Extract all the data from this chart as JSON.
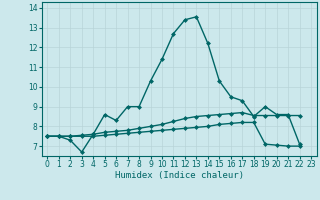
{
  "xlabel": "Humidex (Indice chaleur)",
  "bg_color": "#cce8ec",
  "line_color": "#006666",
  "grid_color": "#b8d4d8",
  "xlim": [
    -0.5,
    23.5
  ],
  "ylim": [
    6.5,
    14.3
  ],
  "yticks": [
    7,
    8,
    9,
    10,
    11,
    12,
    13,
    14
  ],
  "xticks": [
    0,
    1,
    2,
    3,
    4,
    5,
    6,
    7,
    8,
    9,
    10,
    11,
    12,
    13,
    14,
    15,
    16,
    17,
    18,
    19,
    20,
    21,
    22,
    23
  ],
  "line1_x": [
    0,
    1,
    2,
    3,
    4,
    5,
    6,
    7,
    8,
    9,
    10,
    11,
    12,
    13,
    14,
    15,
    16,
    17,
    18,
    19,
    20,
    21,
    22
  ],
  "line1_y": [
    7.5,
    7.5,
    7.3,
    6.7,
    7.6,
    8.6,
    8.3,
    9.0,
    9.0,
    10.3,
    11.4,
    12.7,
    13.4,
    13.55,
    12.2,
    10.3,
    9.5,
    9.3,
    8.5,
    9.0,
    8.6,
    8.6,
    7.1
  ],
  "line2_x": [
    0,
    1,
    2,
    3,
    4,
    5,
    6,
    7,
    8,
    9,
    10,
    11,
    12,
    13,
    14,
    15,
    16,
    17,
    18,
    19,
    20,
    21,
    22
  ],
  "line2_y": [
    7.5,
    7.5,
    7.5,
    7.55,
    7.6,
    7.7,
    7.75,
    7.8,
    7.9,
    8.0,
    8.1,
    8.25,
    8.4,
    8.5,
    8.55,
    8.6,
    8.65,
    8.7,
    8.55,
    8.55,
    8.55,
    8.55,
    8.55
  ],
  "line3_x": [
    0,
    1,
    2,
    3,
    4,
    5,
    6,
    7,
    8,
    9,
    10,
    11,
    12,
    13,
    14,
    15,
    16,
    17,
    18,
    19,
    20,
    21,
    22
  ],
  "line3_y": [
    7.5,
    7.5,
    7.5,
    7.5,
    7.5,
    7.55,
    7.6,
    7.65,
    7.7,
    7.75,
    7.8,
    7.85,
    7.9,
    7.95,
    8.0,
    8.1,
    8.15,
    8.2,
    8.2,
    7.1,
    7.05,
    7.0,
    7.0
  ],
  "marker_size": 2.5,
  "line_width": 1.0,
  "xlabel_fontsize": 6.5,
  "tick_fontsize": 5.5
}
